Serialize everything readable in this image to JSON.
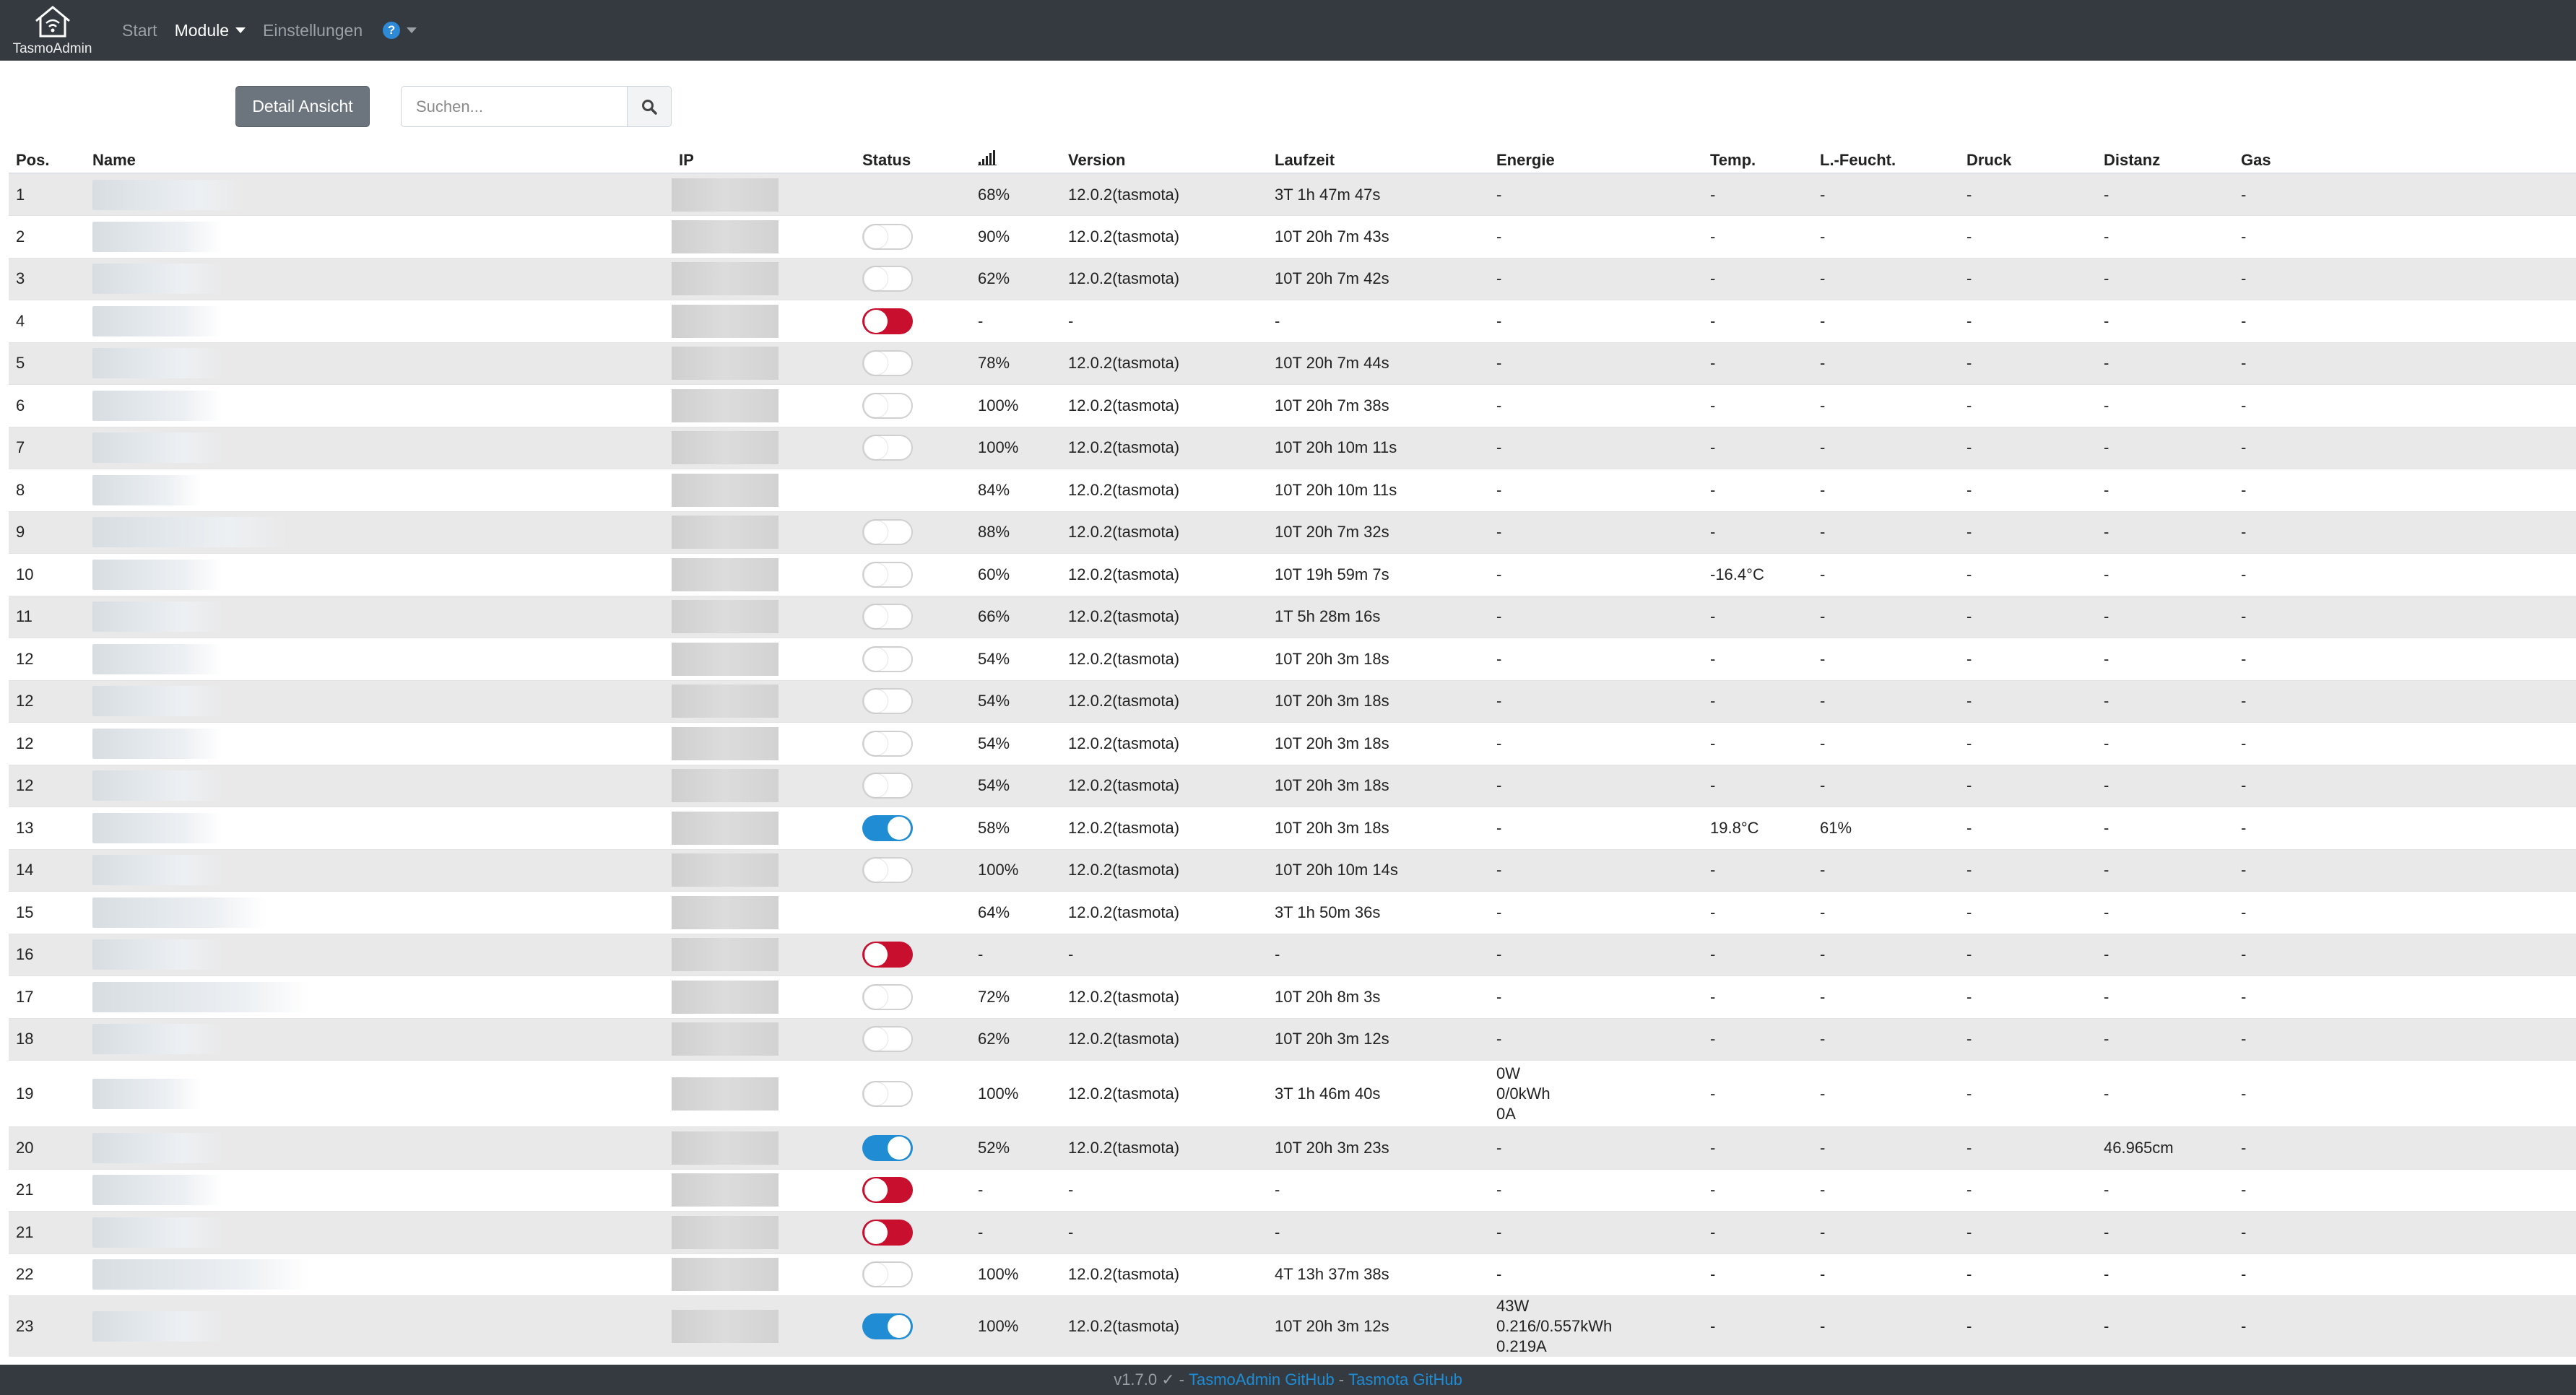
{
  "navbar": {
    "brand": "TasmoAdmin",
    "start": "Start",
    "module": "Module",
    "settings": "Einstellungen"
  },
  "toolbar": {
    "detail_view": "Detail Ansicht",
    "search_placeholder": "Suchen..."
  },
  "table": {
    "headers": {
      "pos": "Pos.",
      "name": "Name",
      "ip": "IP",
      "status": "Status",
      "version": "Version",
      "uptime": "Laufzeit",
      "energy": "Energie",
      "temp": "Temp.",
      "humidity": "L.-Feucht.",
      "pressure": "Druck",
      "distance": "Distanz",
      "gas": "Gas"
    },
    "rows": [
      {
        "pos": "1",
        "status": "none",
        "signal": "68%",
        "version": "12.0.2(tasmota)",
        "uptime": "3T 1h 47m 47s",
        "energy": [
          "-"
        ],
        "temp": "-",
        "hum": "-",
        "press": "-",
        "dist": "-",
        "gas": "-",
        "name_w": 200
      },
      {
        "pos": "2",
        "status": "off",
        "signal": "90%",
        "version": "12.0.2(tasmota)",
        "uptime": "10T 20h 7m 43s",
        "energy": [
          "-"
        ],
        "temp": "-",
        "hum": "-",
        "press": "-",
        "dist": "-",
        "gas": "-",
        "name_w": 170
      },
      {
        "pos": "3",
        "status": "off",
        "signal": "62%",
        "version": "12.0.2(tasmota)",
        "uptime": "10T 20h 7m 42s",
        "energy": [
          "-"
        ],
        "temp": "-",
        "hum": "-",
        "press": "-",
        "dist": "-",
        "gas": "-",
        "name_w": 170
      },
      {
        "pos": "4",
        "status": "err",
        "signal": "-",
        "version": "-",
        "uptime": "-",
        "energy": [
          "-"
        ],
        "temp": "-",
        "hum": "-",
        "press": "-",
        "dist": "-",
        "gas": "-",
        "name_w": 170
      },
      {
        "pos": "5",
        "status": "off",
        "signal": "78%",
        "version": "12.0.2(tasmota)",
        "uptime": "10T 20h 7m 44s",
        "energy": [
          "-"
        ],
        "temp": "-",
        "hum": "-",
        "press": "-",
        "dist": "-",
        "gas": "-",
        "name_w": 170
      },
      {
        "pos": "6",
        "status": "off",
        "signal": "100%",
        "version": "12.0.2(tasmota)",
        "uptime": "10T 20h 7m 38s",
        "energy": [
          "-"
        ],
        "temp": "-",
        "hum": "-",
        "press": "-",
        "dist": "-",
        "gas": "-",
        "name_w": 170
      },
      {
        "pos": "7",
        "status": "off",
        "signal": "100%",
        "version": "12.0.2(tasmota)",
        "uptime": "10T 20h 10m 11s",
        "energy": [
          "-"
        ],
        "temp": "-",
        "hum": "-",
        "press": "-",
        "dist": "-",
        "gas": "-",
        "name_w": 170
      },
      {
        "pos": "8",
        "status": "none",
        "signal": "84%",
        "version": "12.0.2(tasmota)",
        "uptime": "10T 20h 10m 11s",
        "energy": [
          "-"
        ],
        "temp": "-",
        "hum": "-",
        "press": "-",
        "dist": "-",
        "gas": "-",
        "name_w": 140
      },
      {
        "pos": "9",
        "status": "off",
        "signal": "88%",
        "version": "12.0.2(tasmota)",
        "uptime": "10T 20h 7m 32s",
        "energy": [
          "-"
        ],
        "temp": "-",
        "hum": "-",
        "press": "-",
        "dist": "-",
        "gas": "-",
        "name_w": 260
      },
      {
        "pos": "10",
        "status": "off",
        "signal": "60%",
        "version": "12.0.2(tasmota)",
        "uptime": "10T 19h 59m 7s",
        "energy": [
          "-"
        ],
        "temp": "-16.4°C",
        "hum": "-",
        "press": "-",
        "dist": "-",
        "gas": "-",
        "name_w": 170
      },
      {
        "pos": "11",
        "status": "off",
        "signal": "66%",
        "version": "12.0.2(tasmota)",
        "uptime": "1T 5h 28m 16s",
        "energy": [
          "-"
        ],
        "temp": "-",
        "hum": "-",
        "press": "-",
        "dist": "-",
        "gas": "-",
        "name_w": 170
      },
      {
        "pos": "12",
        "status": "off",
        "signal": "54%",
        "version": "12.0.2(tasmota)",
        "uptime": "10T 20h 3m 18s",
        "energy": [
          "-"
        ],
        "temp": "-",
        "hum": "-",
        "press": "-",
        "dist": "-",
        "gas": "-",
        "name_w": 170
      },
      {
        "pos": "12",
        "status": "off",
        "signal": "54%",
        "version": "12.0.2(tasmota)",
        "uptime": "10T 20h 3m 18s",
        "energy": [
          "-"
        ],
        "temp": "-",
        "hum": "-",
        "press": "-",
        "dist": "-",
        "gas": "-",
        "name_w": 170
      },
      {
        "pos": "12",
        "status": "off",
        "signal": "54%",
        "version": "12.0.2(tasmota)",
        "uptime": "10T 20h 3m 18s",
        "energy": [
          "-"
        ],
        "temp": "-",
        "hum": "-",
        "press": "-",
        "dist": "-",
        "gas": "-",
        "name_w": 170
      },
      {
        "pos": "12",
        "status": "off",
        "signal": "54%",
        "version": "12.0.2(tasmota)",
        "uptime": "10T 20h 3m 18s",
        "energy": [
          "-"
        ],
        "temp": "-",
        "hum": "-",
        "press": "-",
        "dist": "-",
        "gas": "-",
        "name_w": 170
      },
      {
        "pos": "13",
        "status": "on",
        "signal": "58%",
        "version": "12.0.2(tasmota)",
        "uptime": "10T 20h 3m 18s",
        "energy": [
          "-"
        ],
        "temp": "19.8°C",
        "hum": "61%",
        "press": "-",
        "dist": "-",
        "gas": "-",
        "name_w": 170
      },
      {
        "pos": "14",
        "status": "off",
        "signal": "100%",
        "version": "12.0.2(tasmota)",
        "uptime": "10T 20h 10m 14s",
        "energy": [
          "-"
        ],
        "temp": "-",
        "hum": "-",
        "press": "-",
        "dist": "-",
        "gas": "-",
        "name_w": 170
      },
      {
        "pos": "15",
        "status": "none",
        "signal": "64%",
        "version": "12.0.2(tasmota)",
        "uptime": "3T 1h 50m 36s",
        "energy": [
          "-"
        ],
        "temp": "-",
        "hum": "-",
        "press": "-",
        "dist": "-",
        "gas": "-",
        "name_w": 230
      },
      {
        "pos": "16",
        "status": "err",
        "signal": "-",
        "version": "-",
        "uptime": "-",
        "energy": [
          "-"
        ],
        "temp": "-",
        "hum": "-",
        "press": "-",
        "dist": "-",
        "gas": "-",
        "name_w": 170
      },
      {
        "pos": "17",
        "status": "off",
        "signal": "72%",
        "version": "12.0.2(tasmota)",
        "uptime": "10T 20h 8m 3s",
        "energy": [
          "-"
        ],
        "temp": "-",
        "hum": "-",
        "press": "-",
        "dist": "-",
        "gas": "-",
        "name_w": 290
      },
      {
        "pos": "18",
        "status": "off",
        "signal": "62%",
        "version": "12.0.2(tasmota)",
        "uptime": "10T 20h 3m 12s",
        "energy": [
          "-"
        ],
        "temp": "-",
        "hum": "-",
        "press": "-",
        "dist": "-",
        "gas": "-",
        "name_w": 170
      },
      {
        "pos": "19",
        "status": "off",
        "signal": "100%",
        "version": "12.0.2(tasmota)",
        "uptime": "3T 1h 46m 40s",
        "energy": [
          "0W",
          "0/0kWh",
          "0A"
        ],
        "temp": "-",
        "hum": "-",
        "press": "-",
        "dist": "-",
        "gas": "-",
        "name_w": 140
      },
      {
        "pos": "20",
        "status": "on",
        "signal": "52%",
        "version": "12.0.2(tasmota)",
        "uptime": "10T 20h 3m 23s",
        "energy": [
          "-"
        ],
        "temp": "-",
        "hum": "-",
        "press": "-",
        "dist": "46.965cm",
        "gas": "-",
        "name_w": 170
      },
      {
        "pos": "21",
        "status": "err",
        "signal": "-",
        "version": "-",
        "uptime": "-",
        "energy": [
          "-"
        ],
        "temp": "-",
        "hum": "-",
        "press": "-",
        "dist": "-",
        "gas": "-",
        "name_w": 170
      },
      {
        "pos": "21",
        "status": "err",
        "signal": "-",
        "version": "-",
        "uptime": "-",
        "energy": [
          "-"
        ],
        "temp": "-",
        "hum": "-",
        "press": "-",
        "dist": "-",
        "gas": "-",
        "name_w": 170
      },
      {
        "pos": "22",
        "status": "off",
        "signal": "100%",
        "version": "12.0.2(tasmota)",
        "uptime": "4T 13h 37m 38s",
        "energy": [
          "-"
        ],
        "temp": "-",
        "hum": "-",
        "press": "-",
        "dist": "-",
        "gas": "-",
        "name_w": 290
      },
      {
        "pos": "23",
        "status": "on",
        "signal": "100%",
        "version": "12.0.2(tasmota)",
        "uptime": "10T 20h 3m 12s",
        "energy": [
          "43W",
          "0.216/0.557kWh",
          "0.219A"
        ],
        "temp": "-",
        "hum": "-",
        "press": "-",
        "dist": "-",
        "gas": "-",
        "name_w": 170
      }
    ]
  },
  "footer": {
    "version": "v1.7.0 ✓",
    "link1": "TasmoAdmin GitHub",
    "separator": "-",
    "link2": "Tasmota GitHub"
  },
  "icons": {
    "signal": "signal-strength-icon",
    "search": "search-icon",
    "settings": "gears-icon",
    "help": "question-circle-icon",
    "logo": "house-wifi-icon"
  },
  "colors": {
    "navbar": "#343a40",
    "toggle_on": "#1f8cd3",
    "toggle_error": "#c8102e",
    "gear": "#1d4f91"
  }
}
